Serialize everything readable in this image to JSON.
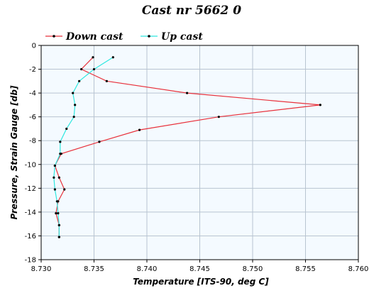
{
  "chart_data": {
    "type": "line",
    "title": "Cast nr 5662 0",
    "xlabel": "Temperature [ITS-90, deg C]",
    "ylabel": "Pressure, Strain Gauge [db]",
    "xlim": [
      8.73,
      8.76
    ],
    "ylim": [
      -18,
      0
    ],
    "xticks": [
      "8.730",
      "8.735",
      "8.740",
      "8.745",
      "8.750",
      "8.755",
      "8.760"
    ],
    "yticks": [
      "0",
      "-2",
      "-4",
      "-6",
      "-8",
      "-10",
      "-12",
      "-14",
      "-16",
      "-18"
    ],
    "grid": true,
    "legend_position": "top-left",
    "series": [
      {
        "name": "Down cast",
        "color": "#e8323c",
        "points": [
          [
            8.7349,
            -1.0
          ],
          [
            8.7338,
            -2.0
          ],
          [
            8.7362,
            -3.0
          ],
          [
            8.7438,
            -4.0
          ],
          [
            8.7564,
            -5.0
          ],
          [
            8.7468,
            -6.0
          ],
          [
            8.7393,
            -7.1
          ],
          [
            8.7355,
            -8.1
          ],
          [
            8.7319,
            -9.1
          ],
          [
            8.7313,
            -10.1
          ],
          [
            8.7317,
            -11.1
          ],
          [
            8.7322,
            -12.1
          ],
          [
            8.7316,
            -13.1
          ],
          [
            8.7314,
            -14.1
          ],
          [
            8.7317,
            -15.1
          ],
          [
            8.7317,
            -16.1
          ]
        ]
      },
      {
        "name": "Up cast",
        "color": "#2ee8e0",
        "points": [
          [
            8.7368,
            -1.0
          ],
          [
            8.735,
            -2.0
          ],
          [
            8.7336,
            -3.0
          ],
          [
            8.733,
            -4.0
          ],
          [
            8.7332,
            -5.0
          ],
          [
            8.7331,
            -6.0
          ],
          [
            8.7324,
            -7.0
          ],
          [
            8.7318,
            -8.1
          ],
          [
            8.7318,
            -9.1
          ],
          [
            8.7313,
            -10.1
          ],
          [
            8.7312,
            -11.1
          ],
          [
            8.7313,
            -12.1
          ],
          [
            8.7315,
            -13.1
          ],
          [
            8.7316,
            -14.1
          ],
          [
            8.7317,
            -15.1
          ],
          [
            8.7317,
            -16.1
          ]
        ]
      }
    ]
  }
}
